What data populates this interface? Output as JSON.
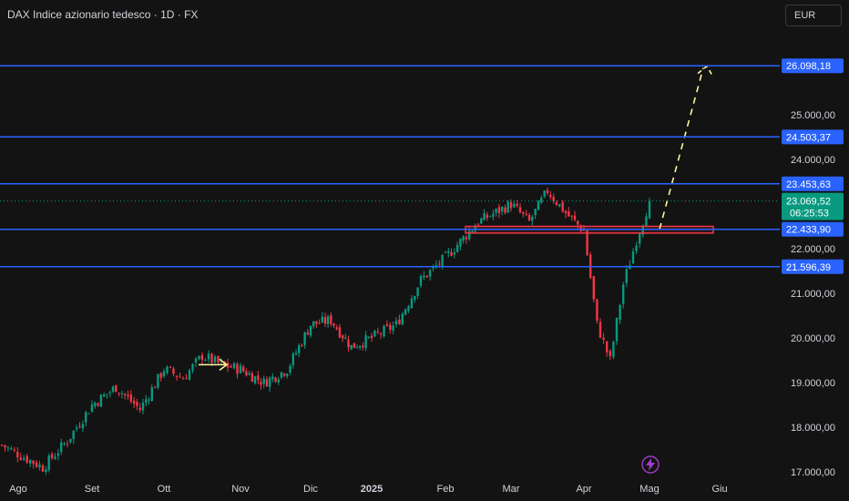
{
  "header": {
    "title": "DAX Indice azionario tedesco · 1D · FX",
    "currency_label": "EUR"
  },
  "chart_data": {
    "type": "candlestick",
    "title": "DAX Indice azionario tedesco · 1D · FX",
    "ylim": [
      16850,
      26800
    ],
    "y_axis_ticks": [
      {
        "value": 25000,
        "label": "25.000,00"
      },
      {
        "value": 24000,
        "label": "24.000,00"
      },
      {
        "value": 22000,
        "label": "22.000,00"
      },
      {
        "value": 21000,
        "label": "21.000,00"
      },
      {
        "value": 20000,
        "label": "20.000,00"
      },
      {
        "value": 19000,
        "label": "19.000,00"
      },
      {
        "value": 18000,
        "label": "18.000,00"
      },
      {
        "value": 17000,
        "label": "17.000,00"
      }
    ],
    "x_axis_ticks": [
      {
        "label": "Ago",
        "bold": false
      },
      {
        "label": "Set",
        "bold": false
      },
      {
        "label": "Ott",
        "bold": false
      },
      {
        "label": "Nov",
        "bold": false
      },
      {
        "label": "Dic",
        "bold": false
      },
      {
        "label": "2025",
        "bold": true
      },
      {
        "label": "Feb",
        "bold": false
      },
      {
        "label": "Mar",
        "bold": false
      },
      {
        "label": "Apr",
        "bold": false
      },
      {
        "label": "Mag",
        "bold": false
      },
      {
        "label": "Giu",
        "bold": false
      }
    ],
    "horizontal_levels": [
      {
        "value": 26098.18,
        "label": "26.098,18"
      },
      {
        "value": 24503.37,
        "label": "24.503,37"
      },
      {
        "value": 23453.63,
        "label": "23.453,63"
      },
      {
        "value": 22433.9,
        "label": "22.433,90"
      },
      {
        "value": 21596.39,
        "label": "21.596,39"
      }
    ],
    "current_price": {
      "value": 23069.52,
      "label": "23.069,52",
      "countdown": "06:25:53"
    },
    "price_path": [
      [
        "Ago",
        17600
      ],
      [
        "Ago",
        17100
      ],
      [
        "Ago",
        17700
      ],
      [
        "Set",
        18500
      ],
      [
        "Set",
        18900
      ],
      [
        "Set",
        18400
      ],
      [
        "Ott",
        19300
      ],
      [
        "Ott",
        19100
      ],
      [
        "Ott",
        19600
      ],
      [
        "Ott",
        19400
      ],
      [
        "Nov",
        19300
      ],
      [
        "Nov",
        19000
      ],
      [
        "Nov",
        19300
      ],
      [
        "Dic",
        20300
      ],
      [
        "Dic",
        20400
      ],
      [
        "Dic",
        19800
      ],
      [
        "2025",
        20000
      ],
      [
        "2025",
        20300
      ],
      [
        "2025",
        21300
      ],
      [
        "Feb",
        21800
      ],
      [
        "Feb",
        22600
      ],
      [
        "Mar",
        23000
      ],
      [
        "Mar",
        22600
      ],
      [
        "Mar",
        23300
      ],
      [
        "Mar",
        22800
      ],
      [
        "Apr",
        22400
      ],
      [
        "Apr",
        20300
      ],
      [
        "Apr",
        19500
      ],
      [
        "Apr",
        21200
      ],
      [
        "Apr",
        22200
      ],
      [
        "Mag",
        23069.52
      ]
    ],
    "annotations": {
      "resistance_zone": {
        "low": 22350,
        "high": 22500,
        "from": "Feb",
        "to": "Mag",
        "color": "#f23645"
      },
      "projection": {
        "from": [
          "Mag",
          22433.9
        ],
        "to": [
          "Giu",
          26098.18
        ],
        "color": "#fff59d",
        "style": "dashed"
      },
      "arrow": {
        "at": "Ott",
        "value": 19400,
        "color": "#fff59d"
      }
    },
    "grid": false
  },
  "colors": {
    "background": "#131313",
    "up": "#089981",
    "down": "#f23645",
    "level_line": "#2962ff",
    "projection": "#fff59d",
    "text": "#d1d4dc"
  },
  "icons": {
    "flash_icon": "lightning-bolt"
  }
}
